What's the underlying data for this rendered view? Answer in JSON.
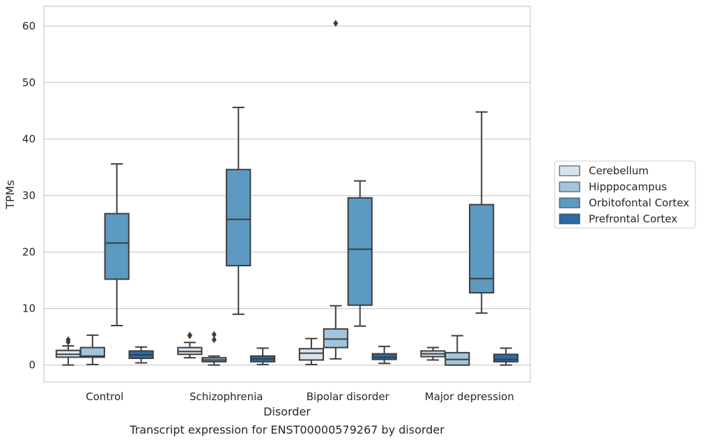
{
  "chart_data": {
    "type": "box",
    "title": "",
    "caption": "Transcript expression for ENST00000579267 by disorder",
    "xlabel": "Disorder",
    "ylabel": "TPMs",
    "ylim": [
      -3,
      63.5
    ],
    "yticks": [
      0,
      10,
      20,
      30,
      40,
      50,
      60
    ],
    "grid": true,
    "legend_position": "right",
    "categories": [
      "Control",
      "Schizophrenia",
      "Bipolar disorder",
      "Major depression"
    ],
    "series": [
      {
        "name": "Cerebellum",
        "color": "#d7e4f0",
        "boxes": [
          {
            "min": 0.0,
            "q1": 1.4,
            "median": 1.9,
            "q3": 2.6,
            "max": 3.4,
            "outliers": [
              4.1,
              4.5
            ]
          },
          {
            "min": 1.3,
            "q1": 1.9,
            "median": 2.4,
            "q3": 3.1,
            "max": 4.0,
            "outliers": [
              5.2,
              5.3
            ]
          },
          {
            "min": 0.1,
            "q1": 0.9,
            "median": 2.1,
            "q3": 2.9,
            "max": 4.7,
            "outliers": []
          },
          {
            "min": 0.9,
            "q1": 1.5,
            "median": 2.0,
            "q3": 2.5,
            "max": 3.1,
            "outliers": []
          }
        ]
      },
      {
        "name": "Hipppocampus",
        "color": "#a2c4dd",
        "boxes": [
          {
            "min": 0.1,
            "q1": 1.4,
            "median": 1.6,
            "q3": 3.1,
            "max": 5.3,
            "outliers": []
          },
          {
            "min": 0.0,
            "q1": 0.6,
            "median": 0.9,
            "q3": 1.3,
            "max": 1.6,
            "outliers": [
              4.5,
              5.4
            ]
          },
          {
            "min": 1.1,
            "q1": 3.1,
            "median": 4.6,
            "q3": 6.4,
            "max": 10.5,
            "outliers": [
              60.5
            ]
          },
          {
            "min": 0.0,
            "q1": 0.0,
            "median": 1.0,
            "q3": 2.2,
            "max": 5.2,
            "outliers": []
          }
        ]
      },
      {
        "name": "Orbitofontal Cortex",
        "color": "#5d9ac2",
        "boxes": [
          {
            "min": 7.0,
            "q1": 15.2,
            "median": 21.6,
            "q3": 26.8,
            "max": 35.6,
            "outliers": []
          },
          {
            "min": 9.0,
            "q1": 17.6,
            "median": 25.8,
            "q3": 34.6,
            "max": 45.6,
            "outliers": []
          },
          {
            "min": 6.9,
            "q1": 10.6,
            "median": 20.5,
            "q3": 29.6,
            "max": 32.6,
            "outliers": []
          },
          {
            "min": 9.2,
            "q1": 12.8,
            "median": 15.3,
            "q3": 28.4,
            "max": 44.8,
            "outliers": []
          }
        ]
      },
      {
        "name": "Prefrontal Cortex",
        "color": "#2d6ca2",
        "boxes": [
          {
            "min": 0.4,
            "q1": 1.2,
            "median": 1.8,
            "q3": 2.5,
            "max": 3.2,
            "outliers": []
          },
          {
            "min": 0.1,
            "q1": 0.6,
            "median": 1.1,
            "q3": 1.6,
            "max": 3.0,
            "outliers": []
          },
          {
            "min": 0.3,
            "q1": 1.0,
            "median": 1.4,
            "q3": 2.0,
            "max": 3.3,
            "outliers": []
          },
          {
            "min": 0.0,
            "q1": 0.6,
            "median": 1.0,
            "q3": 1.9,
            "max": 3.0,
            "outliers": []
          }
        ]
      }
    ]
  }
}
